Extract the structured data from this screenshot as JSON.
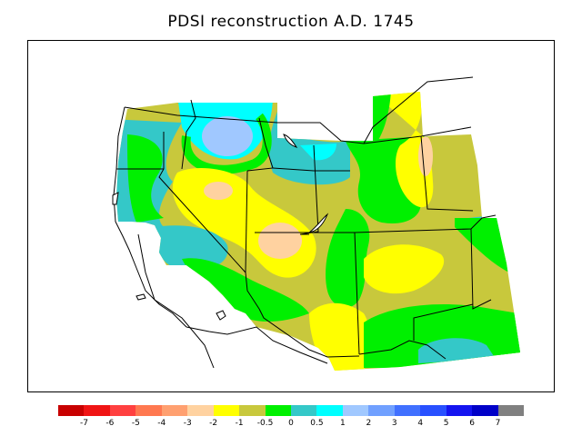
{
  "title": "PDSI reconstruction A.D. 1745",
  "legend": {
    "colors": [
      "#c80000",
      "#f01414",
      "#ff4040",
      "#ff7850",
      "#ffa070",
      "#ffd2a0",
      "#ffff00",
      "#c8c83c",
      "#00f000",
      "#34c8c8",
      "#00ffff",
      "#a0c8ff",
      "#70a0ff",
      "#4070ff",
      "#2850ff",
      "#1414f0",
      "#0000c8",
      "#808080"
    ],
    "labels": [
      "-7",
      "-6",
      "-5",
      "-4",
      "-3",
      "-2",
      "-1",
      "-0.5",
      "0",
      "0.5",
      "1",
      "2",
      "3",
      "4",
      "5",
      "6",
      "7"
    ]
  },
  "map": {
    "classes": {
      "olive": "#c8c83c",
      "yellow": "#ffff00",
      "green": "#00f000",
      "teal": "#34c8c8",
      "cyan": "#00ffff",
      "lightblue": "#a0c8ff",
      "peach": "#ffd2a0"
    }
  }
}
